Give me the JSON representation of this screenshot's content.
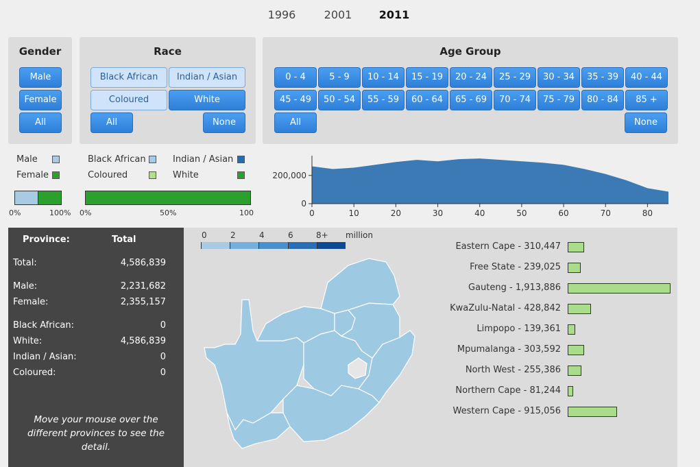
{
  "years": [
    "1996",
    "2001",
    "2011"
  ],
  "active_year": "2011",
  "gender": {
    "title": "Gender",
    "buttons": [
      "Male",
      "Female",
      "All"
    ]
  },
  "race": {
    "title": "Race",
    "buttons": [
      "Black African",
      "Indian / Asian",
      "Coloured",
      "White",
      "All",
      "None"
    ]
  },
  "age": {
    "title": "Age Group",
    "buttons": [
      "0 - 4",
      "5 - 9",
      "10 - 14",
      "15 - 19",
      "20 - 24",
      "25 - 29",
      "30 - 34",
      "35 - 39",
      "40 - 44",
      "45 - 49",
      "50 - 54",
      "55 - 59",
      "60 - 64",
      "65 - 69",
      "70 - 74",
      "75 - 79",
      "80 - 84",
      "85 +"
    ],
    "all": "All",
    "none": "None"
  },
  "gender_legend": [
    {
      "label": "Male",
      "color": "#a6cbe3"
    },
    {
      "label": "Female",
      "color": "#2ca02c"
    }
  ],
  "race_legend": [
    {
      "label": "Black African",
      "color": "#a6cbe3"
    },
    {
      "label": "Indian / Asian",
      "color": "#1f6fb4"
    },
    {
      "label": "Coloured",
      "color": "#b2df8a"
    },
    {
      "label": "White",
      "color": "#2ca02c"
    }
  ],
  "gender_bar": {
    "male_fraction": 0.4865,
    "ticks": [
      "0%",
      "100%"
    ]
  },
  "race_bar": {
    "white_fraction": 1.0,
    "ticks": [
      "0%",
      "50%",
      "100"
    ]
  },
  "age_chart": {
    "type": "area",
    "x": [
      0,
      5,
      10,
      15,
      20,
      25,
      30,
      35,
      40,
      45,
      50,
      55,
      60,
      65,
      70,
      75,
      80,
      85
    ],
    "y": [
      265000,
      245000,
      255000,
      275000,
      295000,
      310000,
      300000,
      315000,
      320000,
      310000,
      300000,
      290000,
      275000,
      245000,
      210000,
      165000,
      110000,
      85000
    ],
    "xticks": [
      "0",
      "10",
      "20",
      "30",
      "40",
      "50",
      "60",
      "70",
      "80"
    ],
    "yticks": [
      "0",
      "200,000"
    ],
    "color": "#3b7ab4"
  },
  "info": {
    "header_province": "Province:",
    "header_total": "Total",
    "rows": [
      {
        "label": "Total:",
        "value": "4,586,839"
      },
      {
        "label": "Male:",
        "value": "2,231,682"
      },
      {
        "label": "Female:",
        "value": "2,355,157"
      },
      {
        "label": "Black African:",
        "value": "0"
      },
      {
        "label": "White:",
        "value": "4,586,839"
      },
      {
        "label": "Indian / Asian:",
        "value": "0"
      },
      {
        "label": "Coloured:",
        "value": "0"
      }
    ],
    "hint": "Move your mouse over the different provinces to see the detail."
  },
  "map_legend": {
    "ticks": [
      "0",
      "2",
      "4",
      "6",
      "8+"
    ],
    "unit": "million",
    "colors": [
      "#a6cbe3",
      "#74b0de",
      "#4a90cd",
      "#2a6eb5",
      "#0c4a96"
    ]
  },
  "map_color": "#9ec9e2",
  "provinces": [
    {
      "label": "Eastern Cape - 310,447",
      "value": 310447
    },
    {
      "label": "Free State - 239,025",
      "value": 239025
    },
    {
      "label": "Gauteng - 1,913,886",
      "value": 1913886
    },
    {
      "label": "KwaZulu-Natal - 428,842",
      "value": 428842
    },
    {
      "label": "Limpopo - 139,361",
      "value": 139361
    },
    {
      "label": "Mpumalanga - 303,592",
      "value": 303592
    },
    {
      "label": "North West - 255,386",
      "value": 255386
    },
    {
      "label": "Northern Cape - 81,244",
      "value": 81244
    },
    {
      "label": "Western Cape - 915,056",
      "value": 915056
    }
  ]
}
